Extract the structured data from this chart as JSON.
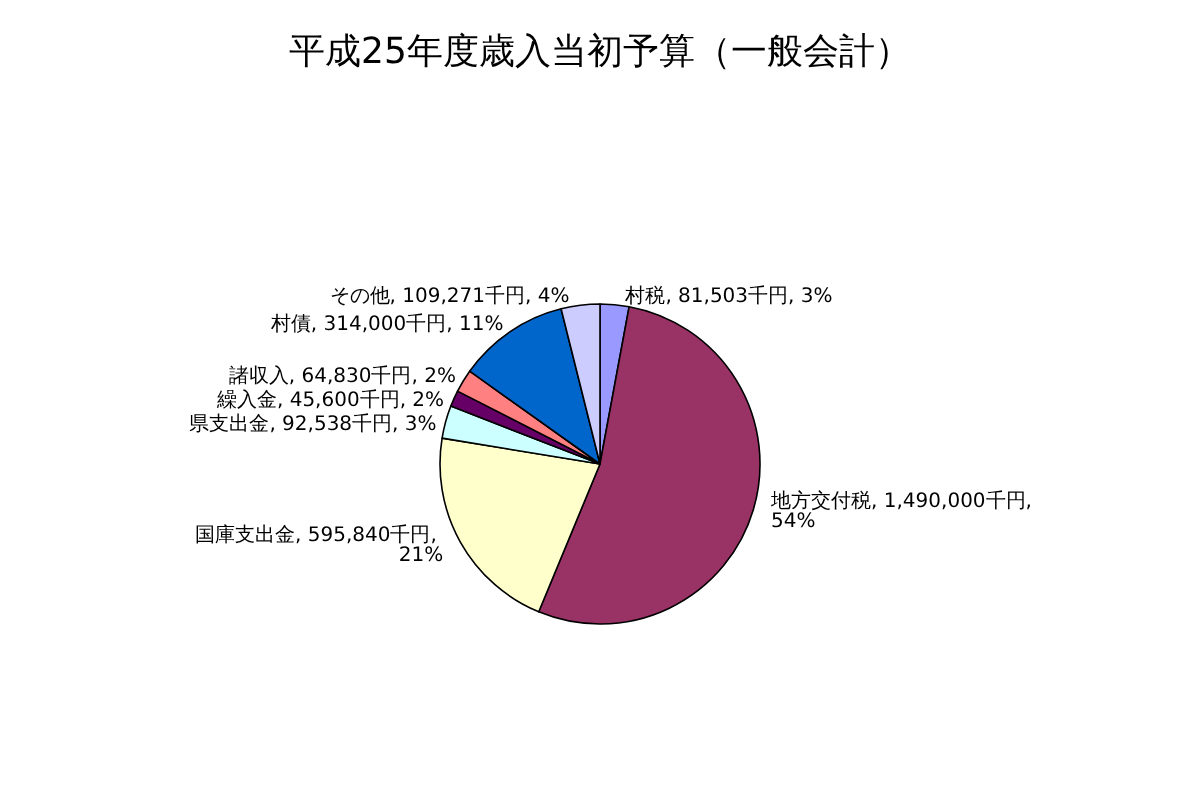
{
  "chart_data": {
    "type": "pie",
    "title": "平成25年度歳入当初予算（一般会計）",
    "categories": [
      "村税",
      "地方交付税",
      "国庫支出金",
      "県支出金",
      "繰入金",
      "諸収入",
      "村債",
      "その他"
    ],
    "values": [
      81503,
      1490000,
      595840,
      92538,
      45600,
      64830,
      314000,
      109271
    ],
    "value_labels": [
      "81,503千円, 3%",
      "1,490,000千円, 54%",
      "595,840千円, 21%",
      "92,538千円, 3%",
      "45,600千円, 2%",
      "64,830千円, 2%",
      "314,000千円, 11%",
      "109,271千円, 4%"
    ],
    "colors": [
      "#9999ff",
      "#993366",
      "#ffffcc",
      "#ccffff",
      "#660066",
      "#ff8080",
      "#0066cc",
      "#ccccff"
    ],
    "legend": false
  }
}
